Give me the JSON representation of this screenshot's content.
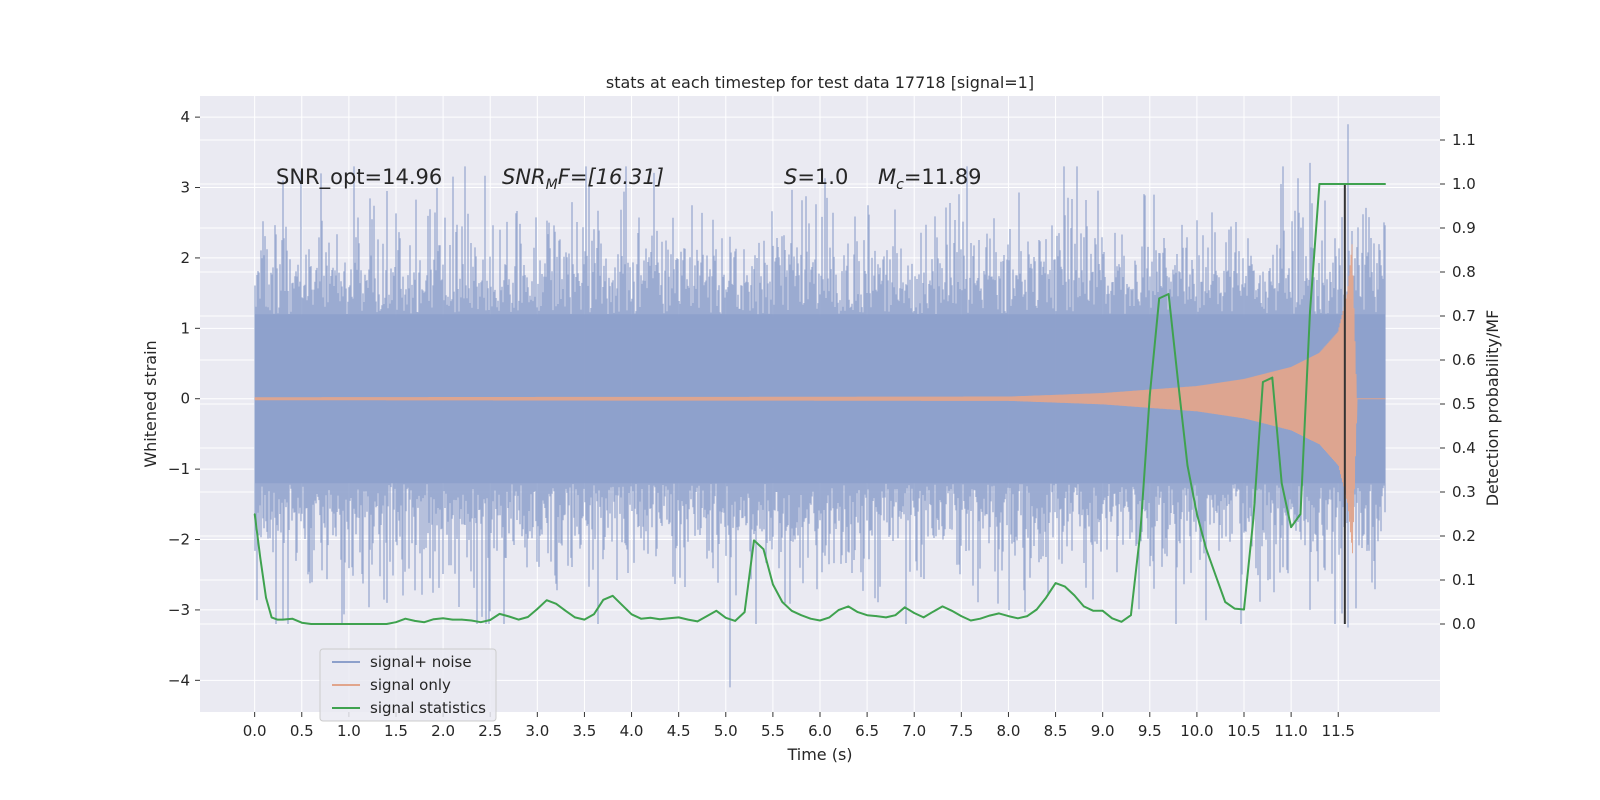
{
  "chart_data": {
    "type": "line",
    "title": "stats at each timestep for test data 17718 [signal=1]",
    "xlabel": "Time (s)",
    "ylabel_left": "Whitened strain",
    "ylabel_right": "Detection probability/MF",
    "xlim": [
      -0.58,
      12.58
    ],
    "ylim_left": [
      -4.45,
      4.3
    ],
    "ylim_right": [
      -0.2,
      1.2
    ],
    "xticks": [
      "0.0",
      "0.5",
      "1.0",
      "1.5",
      "2.0",
      "2.5",
      "3.0",
      "3.5",
      "4.0",
      "4.5",
      "5.0",
      "5.5",
      "6.0",
      "6.5",
      "7.0",
      "7.5",
      "8.0",
      "8.5",
      "9.0",
      "9.5",
      "10.0",
      "10.5",
      "11.0",
      "11.5"
    ],
    "yticks_left": [
      "4",
      "3",
      "2",
      "1",
      "0",
      "−1",
      "−2",
      "−3",
      "−4"
    ],
    "yticks_right": [
      "1.1",
      "1.0",
      "0.9",
      "0.8",
      "0.7",
      "0.6",
      "0.5",
      "0.4",
      "0.3",
      "0.2",
      "0.1",
      "0.0"
    ],
    "grid": true,
    "annotations": {
      "snr_opt": "SNR_opt=14.96",
      "snr_mf_name": "SNR",
      "snr_mf_sub": "M",
      "snr_mf_rest": "F=[16.31]",
      "s_name": "S",
      "s_rest": "=1.0",
      "mc_name": "M",
      "mc_sub": "c",
      "mc_rest": "=11.89"
    },
    "vertical_line_x": 11.57,
    "colors": {
      "background": "#eaeaf2",
      "grid": "#ffffff",
      "signal_noise": "#8da0cb",
      "signal_only": "#e1a58c",
      "signal_statistics": "#3fa24f",
      "vline": "#333333"
    },
    "series": [
      {
        "name": "signal+ noise",
        "axis": "left",
        "style": "dense noise band",
        "x_range": [
          0.0,
          12.0
        ],
        "typical_envelope": [
          -1.5,
          1.5
        ],
        "peak_max": 3.9,
        "peak_min": -4.1
      },
      {
        "name": "signal only",
        "axis": "left",
        "style": "chirp",
        "x_range": [
          0.0,
          12.0
        ],
        "amplitude_x": [
          0.0,
          8.0,
          9.0,
          10.0,
          10.5,
          11.0,
          11.3,
          11.5,
          11.6,
          11.65,
          11.7,
          12.0
        ],
        "amplitude_y": [
          0.02,
          0.03,
          0.08,
          0.18,
          0.28,
          0.45,
          0.65,
          0.95,
          1.5,
          2.2,
          0.0,
          0.0
        ],
        "peak_x": 11.65
      },
      {
        "name": "signal statistics",
        "axis": "right",
        "x": [
          0.0,
          0.06,
          0.12,
          0.18,
          0.24,
          0.3,
          0.4,
          0.5,
          0.6,
          0.8,
          1.0,
          1.2,
          1.4,
          1.5,
          1.6,
          1.7,
          1.8,
          1.9,
          2.0,
          2.1,
          2.2,
          2.3,
          2.4,
          2.5,
          2.6,
          2.7,
          2.8,
          2.9,
          3.0,
          3.1,
          3.2,
          3.3,
          3.4,
          3.5,
          3.6,
          3.7,
          3.8,
          3.9,
          4.0,
          4.1,
          4.2,
          4.3,
          4.4,
          4.5,
          4.6,
          4.7,
          4.8,
          4.9,
          5.0,
          5.1,
          5.2,
          5.3,
          5.4,
          5.5,
          5.6,
          5.7,
          5.8,
          5.9,
          6.0,
          6.1,
          6.2,
          6.3,
          6.4,
          6.5,
          6.6,
          6.7,
          6.8,
          6.9,
          7.0,
          7.1,
          7.2,
          7.3,
          7.4,
          7.5,
          7.6,
          7.7,
          7.8,
          7.9,
          8.0,
          8.1,
          8.2,
          8.3,
          8.4,
          8.5,
          8.6,
          8.7,
          8.8,
          8.9,
          9.0,
          9.1,
          9.2,
          9.3,
          9.4,
          9.5,
          9.6,
          9.7,
          9.8,
          9.9,
          10.0,
          10.1,
          10.2,
          10.3,
          10.4,
          10.5,
          10.6,
          10.7,
          10.8,
          10.9,
          11.0,
          11.1,
          11.2,
          11.3,
          11.4,
          11.5,
          11.6,
          11.7,
          11.8,
          12.0
        ],
        "y": [
          0.25,
          0.15,
          0.06,
          0.015,
          0.01,
          0.01,
          0.012,
          0.003,
          0.0,
          0.0,
          0.0,
          0.0,
          0.0,
          0.004,
          0.012,
          0.007,
          0.004,
          0.011,
          0.013,
          0.01,
          0.01,
          0.008,
          0.004,
          0.009,
          0.023,
          0.017,
          0.01,
          0.016,
          0.034,
          0.054,
          0.046,
          0.03,
          0.015,
          0.01,
          0.022,
          0.055,
          0.064,
          0.043,
          0.022,
          0.012,
          0.014,
          0.011,
          0.013,
          0.015,
          0.01,
          0.006,
          0.018,
          0.03,
          0.014,
          0.007,
          0.027,
          0.19,
          0.17,
          0.09,
          0.05,
          0.03,
          0.02,
          0.012,
          0.008,
          0.015,
          0.032,
          0.04,
          0.027,
          0.02,
          0.018,
          0.015,
          0.02,
          0.038,
          0.025,
          0.015,
          0.028,
          0.04,
          0.03,
          0.018,
          0.008,
          0.012,
          0.019,
          0.024,
          0.018,
          0.013,
          0.018,
          0.033,
          0.06,
          0.093,
          0.085,
          0.065,
          0.04,
          0.03,
          0.03,
          0.013,
          0.005,
          0.02,
          0.21,
          0.52,
          0.74,
          0.75,
          0.55,
          0.36,
          0.25,
          0.17,
          0.11,
          0.05,
          0.035,
          0.033,
          0.24,
          0.55,
          0.56,
          0.32,
          0.22,
          0.25,
          0.71,
          1.0,
          1.0,
          1.0,
          1.0,
          1.0,
          1.0,
          1.0
        ]
      }
    ],
    "legend": {
      "placement": "lower-left",
      "entries": [
        "signal+ noise",
        "signal only",
        "signal statistics"
      ]
    }
  }
}
